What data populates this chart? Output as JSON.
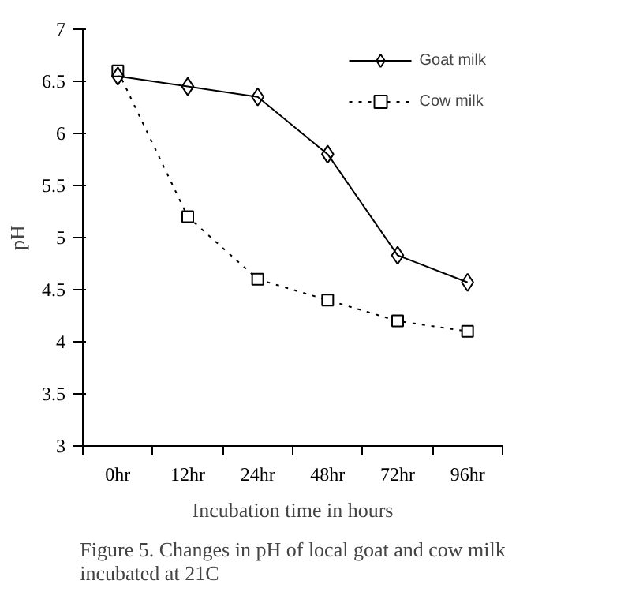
{
  "chart_data": {
    "type": "line",
    "xlabel": "Incubation time in hours",
    "ylabel": "pH",
    "annotations": [
      "Figure 5. Changes in pH of local goat and cow milk incubated at 21C"
    ],
    "categories": [
      "0hr",
      "12hr",
      "24hr",
      "48hr",
      "72hr",
      "96hr"
    ],
    "series": [
      {
        "name": "Goat milk",
        "color": "#000000",
        "marker": "diamond",
        "line_style": "solid",
        "values": [
          6.55,
          6.45,
          6.35,
          5.8,
          4.83,
          4.57
        ]
      },
      {
        "name": "Cow milk",
        "color": "#000000",
        "marker": "square",
        "line_style": "dotted",
        "values": [
          6.6,
          5.2,
          4.6,
          4.4,
          4.2,
          4.1
        ]
      }
    ],
    "ylim": [
      3,
      7
    ],
    "yticks": [
      3,
      3.5,
      4,
      4.5,
      5,
      5.5,
      6,
      6.5,
      7
    ],
    "grid": false,
    "legend": "top right"
  }
}
